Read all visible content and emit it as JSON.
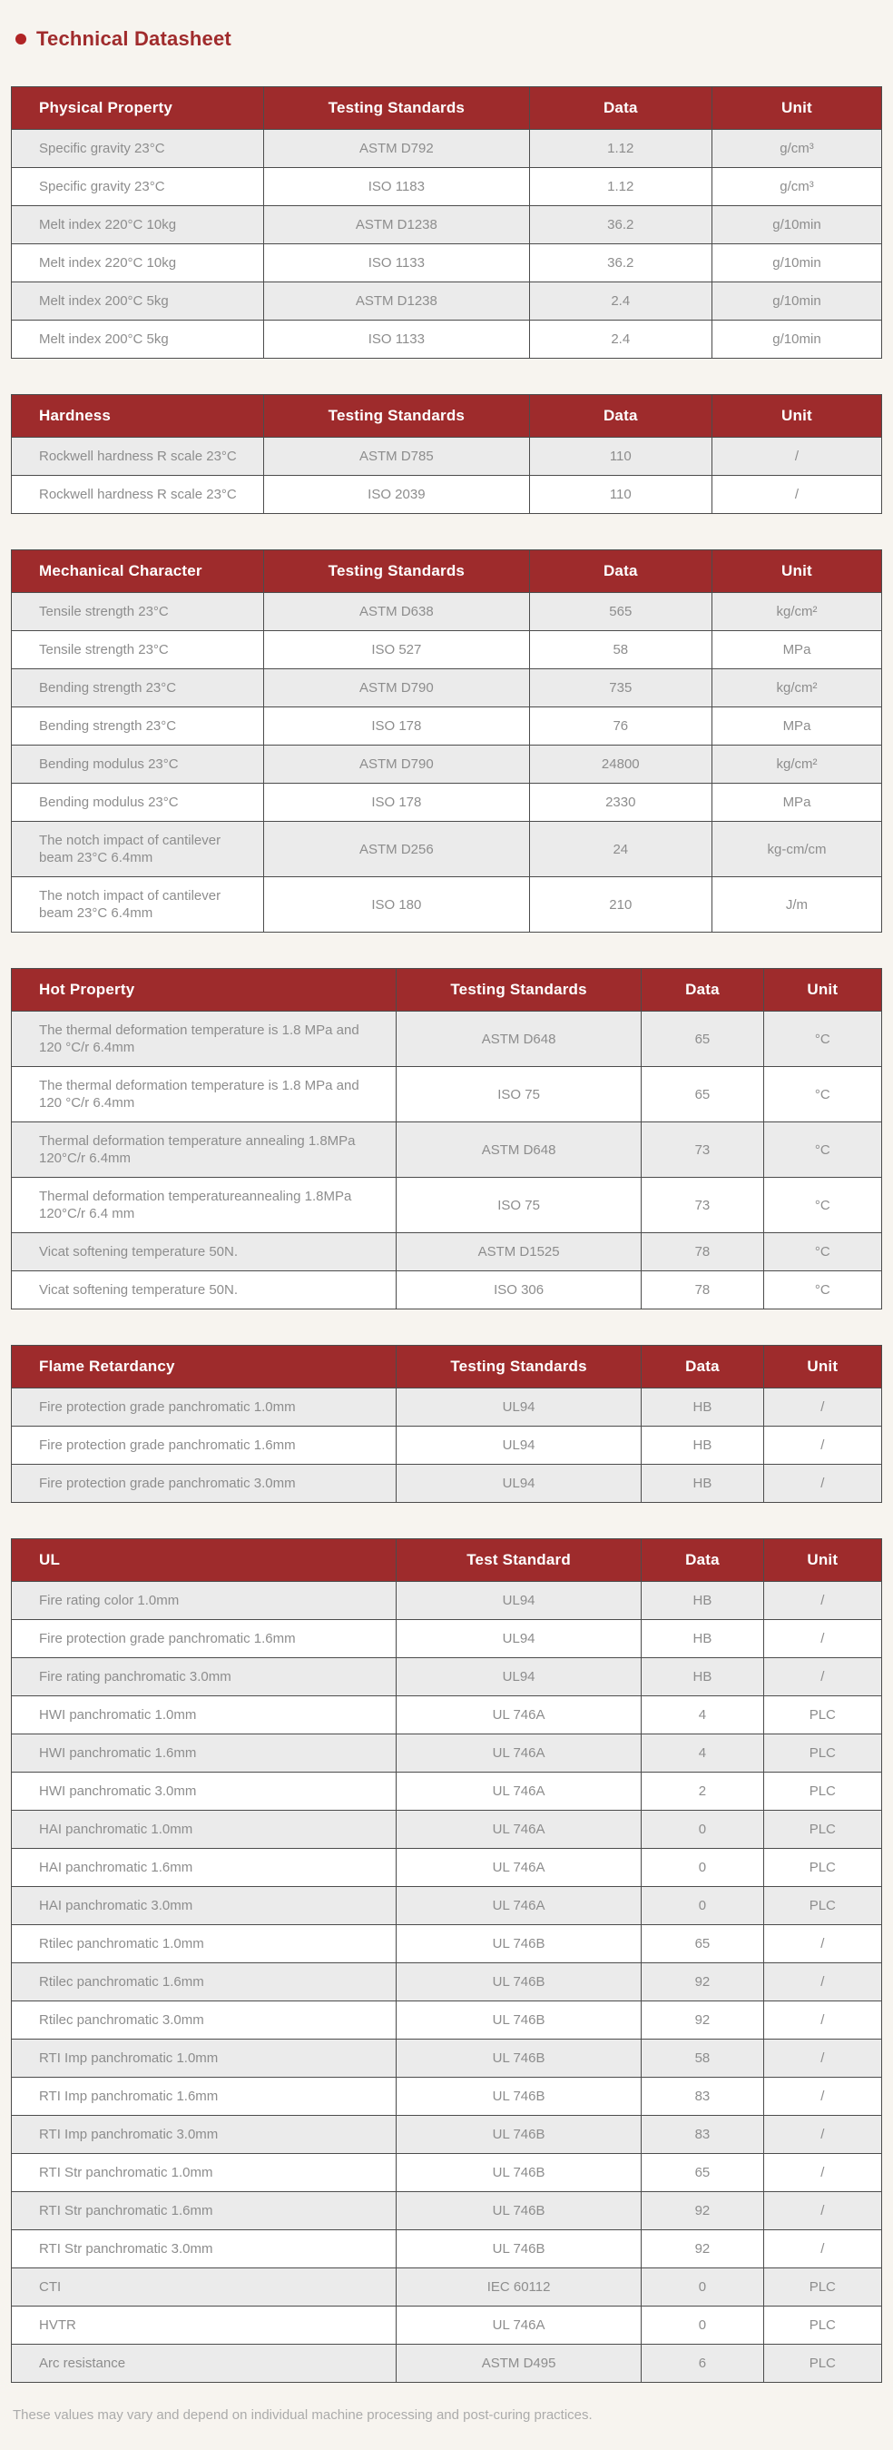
{
  "page": {
    "title": "Technical Datasheet",
    "footnote": "These values may vary and depend on individual machine processing and post-curing practices."
  },
  "colors": {
    "header_bg_red": "#9e2b2c",
    "title_red": "#a02b2c",
    "bullet_red": "#b02425",
    "row_alt_gray": "#ebebeb",
    "row_white": "#ffffff",
    "border_gray": "#4c4c4c",
    "cell_text_gray": "#8d8d8d",
    "page_bg": "#f7f4ef",
    "footnote_gray": "#ababab"
  },
  "tables": [
    {
      "layout": "a",
      "columns": [
        "Physical Property",
        "Testing Standards",
        "Data",
        "Unit"
      ],
      "rows": [
        [
          "Specific gravity 23°C",
          "ASTM D792",
          "1.12",
          "g/cm³"
        ],
        [
          "Specific gravity 23°C",
          "ISO 1183",
          "1.12",
          "g/cm³"
        ],
        [
          "Melt index 220°C 10kg",
          "ASTM D1238",
          "36.2",
          "g/10min"
        ],
        [
          "Melt index 220°C 10kg",
          "ISO 1133",
          "36.2",
          "g/10min"
        ],
        [
          "Melt index 200°C 5kg",
          "ASTM D1238",
          "2.4",
          "g/10min"
        ],
        [
          "Melt index 200°C 5kg",
          "ISO 1133",
          "2.4",
          "g/10min"
        ]
      ]
    },
    {
      "layout": "a",
      "columns": [
        "Hardness",
        "Testing Standards",
        "Data",
        "Unit"
      ],
      "rows": [
        [
          "Rockwell hardness R scale 23°C",
          "ASTM D785",
          "110",
          "/"
        ],
        [
          "Rockwell hardness R scale 23°C",
          "ISO 2039",
          "110",
          "/"
        ]
      ]
    },
    {
      "layout": "a",
      "columns": [
        "Mechanical Character",
        "Testing Standards",
        "Data",
        "Unit"
      ],
      "rows": [
        [
          "Tensile strength 23°C",
          "ASTM D638",
          "565",
          "kg/cm²"
        ],
        [
          "Tensile strength 23°C",
          "ISO 527",
          "58",
          "MPa"
        ],
        [
          "Bending strength 23°C",
          "ASTM D790",
          "735",
          "kg/cm²"
        ],
        [
          "Bending strength 23°C",
          "ISO 178",
          "76",
          "MPa"
        ],
        [
          "Bending modulus 23°C",
          "ASTM D790",
          "24800",
          "kg/cm²"
        ],
        [
          "Bending modulus 23°C",
          "ISO 178",
          "2330",
          "MPa"
        ],
        [
          "The notch impact of cantilever beam 23°C 6.4mm",
          "ASTM D256",
          "24",
          "kg-cm/cm"
        ],
        [
          "The notch impact of cantilever beam 23°C 6.4mm",
          "ISO 180",
          "210",
          "J/m"
        ]
      ]
    },
    {
      "layout": "b",
      "columns": [
        "Hot Property",
        "Testing Standards",
        "Data",
        "Unit"
      ],
      "rows": [
        [
          "The thermal deformation temperature is 1.8 MPa and 120 °C/r 6.4mm",
          "ASTM D648",
          "65",
          "°C"
        ],
        [
          "The thermal deformation temperature is 1.8 MPa and 120 °C/r 6.4mm",
          "ISO 75",
          "65",
          "°C"
        ],
        [
          "Thermal deformation temperature annealing 1.8MPa 120°C/r 6.4mm",
          "ASTM D648",
          "73",
          "°C"
        ],
        [
          "Thermal deformation temperatureannealing 1.8MPa 120°C/r 6.4 mm",
          "ISO 75",
          "73",
          "°C"
        ],
        [
          "Vicat softening temperature 50N.",
          "ASTM D1525",
          "78",
          "°C"
        ],
        [
          "Vicat softening temperature 50N.",
          "ISO 306",
          "78",
          "°C"
        ]
      ]
    },
    {
      "layout": "b",
      "columns": [
        "Flame Retardancy",
        "Testing Standards",
        "Data",
        "Unit"
      ],
      "rows": [
        [
          "Fire protection grade panchromatic 1.0mm",
          "UL94",
          "HB",
          "/"
        ],
        [
          "Fire protection grade panchromatic 1.6mm",
          "UL94",
          "HB",
          "/"
        ],
        [
          "Fire protection grade panchromatic 3.0mm",
          "UL94",
          "HB",
          "/"
        ]
      ]
    },
    {
      "layout": "b",
      "columns": [
        "UL",
        "Test Standard",
        "Data",
        "Unit"
      ],
      "rows": [
        [
          "Fire rating color 1.0mm",
          "UL94",
          "HB",
          "/"
        ],
        [
          "Fire protection grade panchromatic 1.6mm",
          "UL94",
          "HB",
          "/"
        ],
        [
          "Fire rating panchromatic 3.0mm",
          "UL94",
          "HB",
          "/"
        ],
        [
          "HWI panchromatic 1.0mm",
          "UL 746A",
          "4",
          "PLC"
        ],
        [
          "HWI panchromatic 1.6mm",
          "UL 746A",
          "4",
          "PLC"
        ],
        [
          "HWI panchromatic 3.0mm",
          "UL 746A",
          "2",
          "PLC"
        ],
        [
          "HAI panchromatic 1.0mm",
          "UL 746A",
          "0",
          "PLC"
        ],
        [
          "HAI panchromatic 1.6mm",
          "UL 746A",
          "0",
          "PLC"
        ],
        [
          "HAI panchromatic 3.0mm",
          "UL 746A",
          "0",
          "PLC"
        ],
        [
          "Rtilec panchromatic 1.0mm",
          "UL 746B",
          "65",
          "/"
        ],
        [
          "Rtilec panchromatic 1.6mm",
          "UL 746B",
          "92",
          "/"
        ],
        [
          "Rtilec panchromatic 3.0mm",
          "UL 746B",
          "92",
          "/"
        ],
        [
          "RTI Imp panchromatic 1.0mm",
          "UL 746B",
          "58",
          "/"
        ],
        [
          "RTI Imp panchromatic 1.6mm",
          "UL 746B",
          "83",
          "/"
        ],
        [
          "RTI Imp panchromatic 3.0mm",
          "UL 746B",
          "83",
          "/"
        ],
        [
          "RTI Str panchromatic 1.0mm",
          "UL 746B",
          "65",
          "/"
        ],
        [
          "RTI Str panchromatic 1.6mm",
          "UL 746B",
          "92",
          "/"
        ],
        [
          "RTI Str panchromatic 3.0mm",
          "UL 746B",
          "92",
          "/"
        ],
        [
          "CTI",
          "IEC 60112",
          "0",
          "PLC"
        ],
        [
          "HVTR",
          "UL 746A",
          "0",
          "PLC"
        ],
        [
          "Arc resistance",
          "ASTM D495",
          "6",
          "PLC"
        ]
      ]
    }
  ]
}
